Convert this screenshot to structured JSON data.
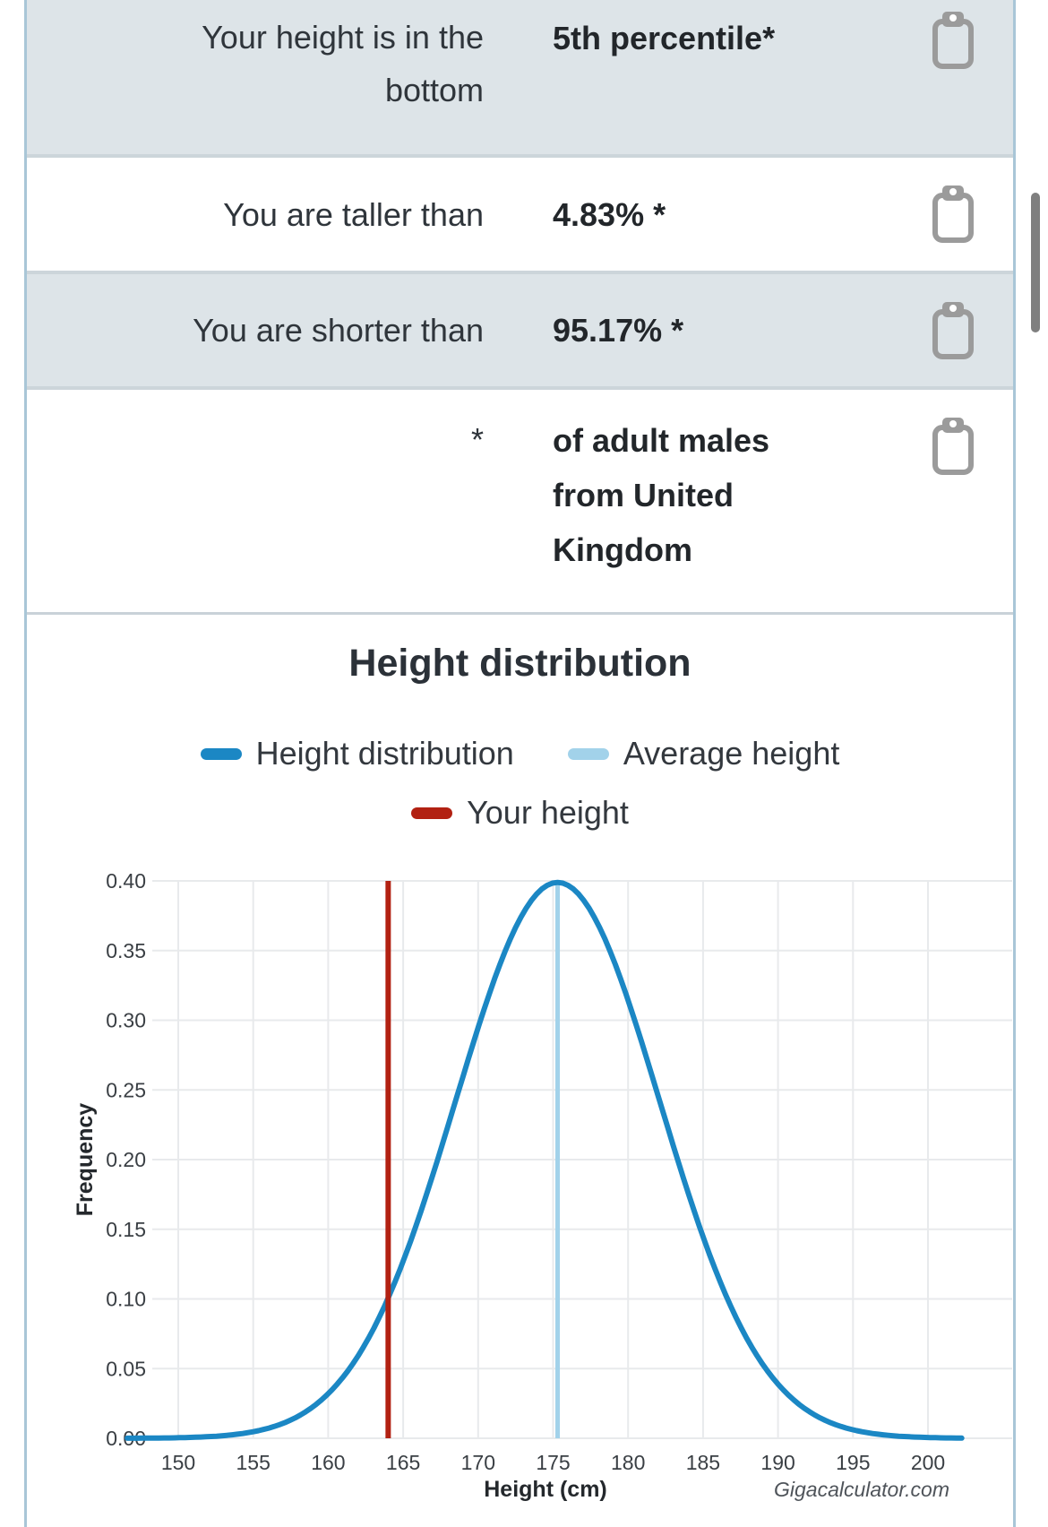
{
  "table": {
    "rows": [
      {
        "label": "Your height is in the bottom",
        "value": "5th percentile*"
      },
      {
        "label": "You are taller than",
        "value": "4.83% *"
      },
      {
        "label": "You are shorter than",
        "value": "95.17% *"
      },
      {
        "label": "*",
        "value": "of adult males from United Kingdom"
      }
    ]
  },
  "chart_data": {
    "type": "line",
    "title": "Height distribution",
    "xlabel": "Height (cm)",
    "ylabel": "Frequency",
    "watermark": "Gigacalculator.com",
    "xlim": [
      146.6,
      202.4
    ],
    "ylim": [
      0,
      0.4
    ],
    "grid": true,
    "x_ticks": [
      150,
      155,
      160,
      165,
      170,
      175,
      180,
      185,
      190,
      195,
      200
    ],
    "y_tick_labels": [
      "0.00",
      "0.05",
      "0.10",
      "0.15",
      "0.20",
      "0.25",
      "0.30",
      "0.35",
      "0.40"
    ],
    "y_tick_values": [
      0.0,
      0.05,
      0.1,
      0.15,
      0.2,
      0.25,
      0.3,
      0.35,
      0.4
    ],
    "legend": [
      {
        "label": "Height distribution",
        "color": "#1b87c4"
      },
      {
        "label": "Average height",
        "color": "#a2d2ea"
      },
      {
        "label": "Your height",
        "color": "#b22112"
      }
    ],
    "series": [
      {
        "name": "Height distribution",
        "distribution": "normal",
        "mean": 175.3,
        "sigma": 6.81,
        "peak": 0.3989,
        "color": "#1b87c4",
        "points": [
          [
            150,
            0.0004
          ],
          [
            152.5,
            0.0015
          ],
          [
            155,
            0.0047
          ],
          [
            157.5,
            0.0131
          ],
          [
            160,
            0.0319
          ],
          [
            162.5,
            0.0683
          ],
          [
            165,
            0.127
          ],
          [
            167.5,
            0.207
          ],
          [
            170,
            0.2947
          ],
          [
            172.5,
            0.3666
          ],
          [
            175.3,
            0.3989
          ],
          [
            177.5,
            0.3786
          ],
          [
            180,
            0.3143
          ],
          [
            182.5,
            0.2281
          ],
          [
            185,
            0.1447
          ],
          [
            187.5,
            0.0803
          ],
          [
            190,
            0.0388
          ],
          [
            192.5,
            0.0164
          ],
          [
            195,
            0.0061
          ],
          [
            197.5,
            0.002
          ],
          [
            200,
            0.0006
          ],
          [
            202.4,
            0.0001
          ]
        ]
      }
    ],
    "vlines": [
      {
        "name": "Average height",
        "x": 175.3,
        "color": "#a2d2ea"
      },
      {
        "name": "Your height",
        "x": 164.0,
        "color": "#b22112"
      }
    ]
  }
}
